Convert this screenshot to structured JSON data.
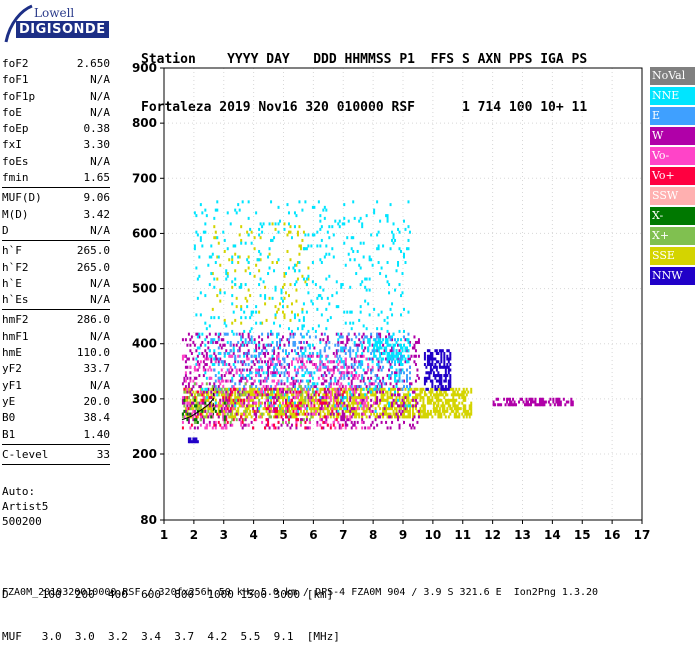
{
  "logo": {
    "top": "Lowell",
    "bottom": "DIGISONDE"
  },
  "header": {
    "labels": [
      "Station",
      "YYYY",
      "DAY",
      "DDD",
      "HHMMSS",
      "P1",
      "FFS",
      "S",
      "AXN",
      "PPS",
      "IGA",
      "PS"
    ],
    "values": [
      "Fortaleza",
      "2019",
      "Nov16",
      "320",
      "010000",
      "RSF",
      "1",
      "714",
      "100",
      "10+",
      "11"
    ]
  },
  "params": {
    "group1": [
      {
        "name": "foF2",
        "value": "2.650"
      },
      {
        "name": "foF1",
        "value": "N/A"
      },
      {
        "name": "foF1p",
        "value": "N/A"
      },
      {
        "name": "foE",
        "value": "N/A"
      },
      {
        "name": "foEp",
        "value": "0.38"
      },
      {
        "name": "fxI",
        "value": "3.30"
      },
      {
        "name": "foEs",
        "value": "N/A"
      },
      {
        "name": "fmin",
        "value": "1.65"
      }
    ],
    "group2": [
      {
        "name": "MUF(D)",
        "value": "9.06"
      },
      {
        "name": "M(D)",
        "value": "3.42"
      },
      {
        "name": "D",
        "value": "N/A"
      }
    ],
    "group3": [
      {
        "name": "h`F",
        "value": "265.0"
      },
      {
        "name": "h`F2",
        "value": "265.0"
      },
      {
        "name": "h`E",
        "value": "N/A"
      },
      {
        "name": "h`Es",
        "value": "N/A"
      }
    ],
    "group4": [
      {
        "name": "hmF2",
        "value": "286.0"
      },
      {
        "name": "hmF1",
        "value": "N/A"
      },
      {
        "name": "hmE",
        "value": "110.0"
      },
      {
        "name": "yF2",
        "value": "33.7"
      },
      {
        "name": "yF1",
        "value": "N/A"
      },
      {
        "name": "yE",
        "value": "20.0"
      },
      {
        "name": "B0",
        "value": "38.4"
      },
      {
        "name": "B1",
        "value": "1.40"
      }
    ],
    "group5": [
      {
        "name": "C-level",
        "value": "33"
      }
    ]
  },
  "auto": [
    "Auto:",
    "Artist5",
    "500200"
  ],
  "legend": [
    {
      "label": "NoVal",
      "color": "#808080"
    },
    {
      "label": "NNE",
      "color": "#00e5ff"
    },
    {
      "label": "E",
      "color": "#3fa0ff"
    },
    {
      "label": "W",
      "color": "#b000a8"
    },
    {
      "label": "Vo-",
      "color": "#ff44c8"
    },
    {
      "label": "Vo+",
      "color": "#ff0040"
    },
    {
      "label": "SSW",
      "color": "#ffb0b0"
    },
    {
      "label": "X-",
      "color": "#007800"
    },
    {
      "label": "X+",
      "color": "#80c050"
    },
    {
      "label": "SSE",
      "color": "#d4d400"
    },
    {
      "label": "NNW",
      "color": "#2000c8"
    }
  ],
  "footer": {
    "d_label": "D",
    "d_values": [
      "100",
      "200",
      "400",
      "600",
      "800",
      "1000",
      "1500",
      "3000",
      "[km]"
    ],
    "muf_label": "MUF",
    "muf_values": [
      "3.0",
      "3.0",
      "3.2",
      "3.4",
      "3.7",
      "4.2",
      "5.5",
      "9.1",
      "[MHz]"
    ],
    "filename": "FZA0M_2019320010000.RSF / 320fx256h 50 kHz 5.0 km / DPS-4 FZA0M 904 / 3.9 S 321.6 E  Ion2Png 1.3.20"
  },
  "chart_data": {
    "type": "scatter",
    "title": "",
    "xlabel": "",
    "ylabel": "",
    "xlim": [
      1,
      17
    ],
    "ylim": [
      80,
      900
    ],
    "x_ticks": [
      "1",
      "2",
      "3",
      "4",
      "5",
      "6",
      "7",
      "8",
      "9",
      "10",
      "11",
      "12",
      "13",
      "14",
      "15",
      "16",
      "17"
    ],
    "y_ticks": [
      "80",
      "200",
      "300",
      "400",
      "500",
      "600",
      "700",
      "800",
      "900"
    ],
    "grid": true,
    "legend_position": "right",
    "series": [
      {
        "name": "SSE",
        "color": "#d4d400",
        "regions": [
          {
            "x": [
              1.6,
              11.3
            ],
            "y": [
              270,
              320
            ],
            "density": 0.55
          },
          {
            "x": [
              2.6,
              5.8
            ],
            "y": [
              440,
              620
            ],
            "density": 0.05
          }
        ]
      },
      {
        "name": "W",
        "color": "#b000a8",
        "regions": [
          {
            "x": [
              1.6,
              9.5
            ],
            "y": [
              250,
              420
            ],
            "density": 0.15
          },
          {
            "x": [
              12.0,
              14.7
            ],
            "y": [
              292,
              304
            ],
            "density": 0.5
          }
        ]
      },
      {
        "name": "E",
        "color": "#3fa0ff",
        "regions": [
          {
            "x": [
              2.5,
              9.2
            ],
            "y": [
              320,
              420
            ],
            "density": 0.12
          }
        ]
      },
      {
        "name": "NNE",
        "color": "#00e5ff",
        "regions": [
          {
            "x": [
              2.0,
              9.2
            ],
            "y": [
              280,
              660
            ],
            "density": 0.05
          },
          {
            "x": [
              7.8,
              9.2
            ],
            "y": [
              370,
              410
            ],
            "density": 0.35
          }
        ]
      },
      {
        "name": "NNW",
        "color": "#2000c8",
        "regions": [
          {
            "x": [
              9.7,
              10.6
            ],
            "y": [
              320,
              390
            ],
            "density": 0.45
          },
          {
            "x": [
              1.8,
              2.1
            ],
            "y": [
              225,
              230
            ],
            "density": 0.6
          }
        ]
      },
      {
        "name": "Vo-",
        "color": "#ff44c8",
        "regions": [
          {
            "x": [
              1.6,
              8.0
            ],
            "y": [
              250,
              380
            ],
            "density": 0.1
          }
        ]
      },
      {
        "name": "Vo+",
        "color": "#ff0040",
        "regions": [
          {
            "x": [
              1.6,
              7.0
            ],
            "y": [
              250,
              320
            ],
            "density": 0.06
          }
        ]
      },
      {
        "name": "X+",
        "color": "#80c050",
        "regions": [
          {
            "x": [
              1.6,
              6.0
            ],
            "y": [
              260,
              330
            ],
            "density": 0.05
          }
        ]
      },
      {
        "name": "X-",
        "color": "#007800",
        "regions": [
          {
            "x": [
              1.6,
              3.0
            ],
            "y": [
              260,
              300
            ],
            "density": 0.08
          }
        ]
      }
    ],
    "profile_curve": {
      "x": [
        1.6,
        1.9,
        2.1,
        2.3,
        2.5,
        2.65
      ],
      "y": [
        262,
        268,
        275,
        282,
        290,
        300
      ]
    },
    "foF2_marker": {
      "x": 2.65
    }
  }
}
